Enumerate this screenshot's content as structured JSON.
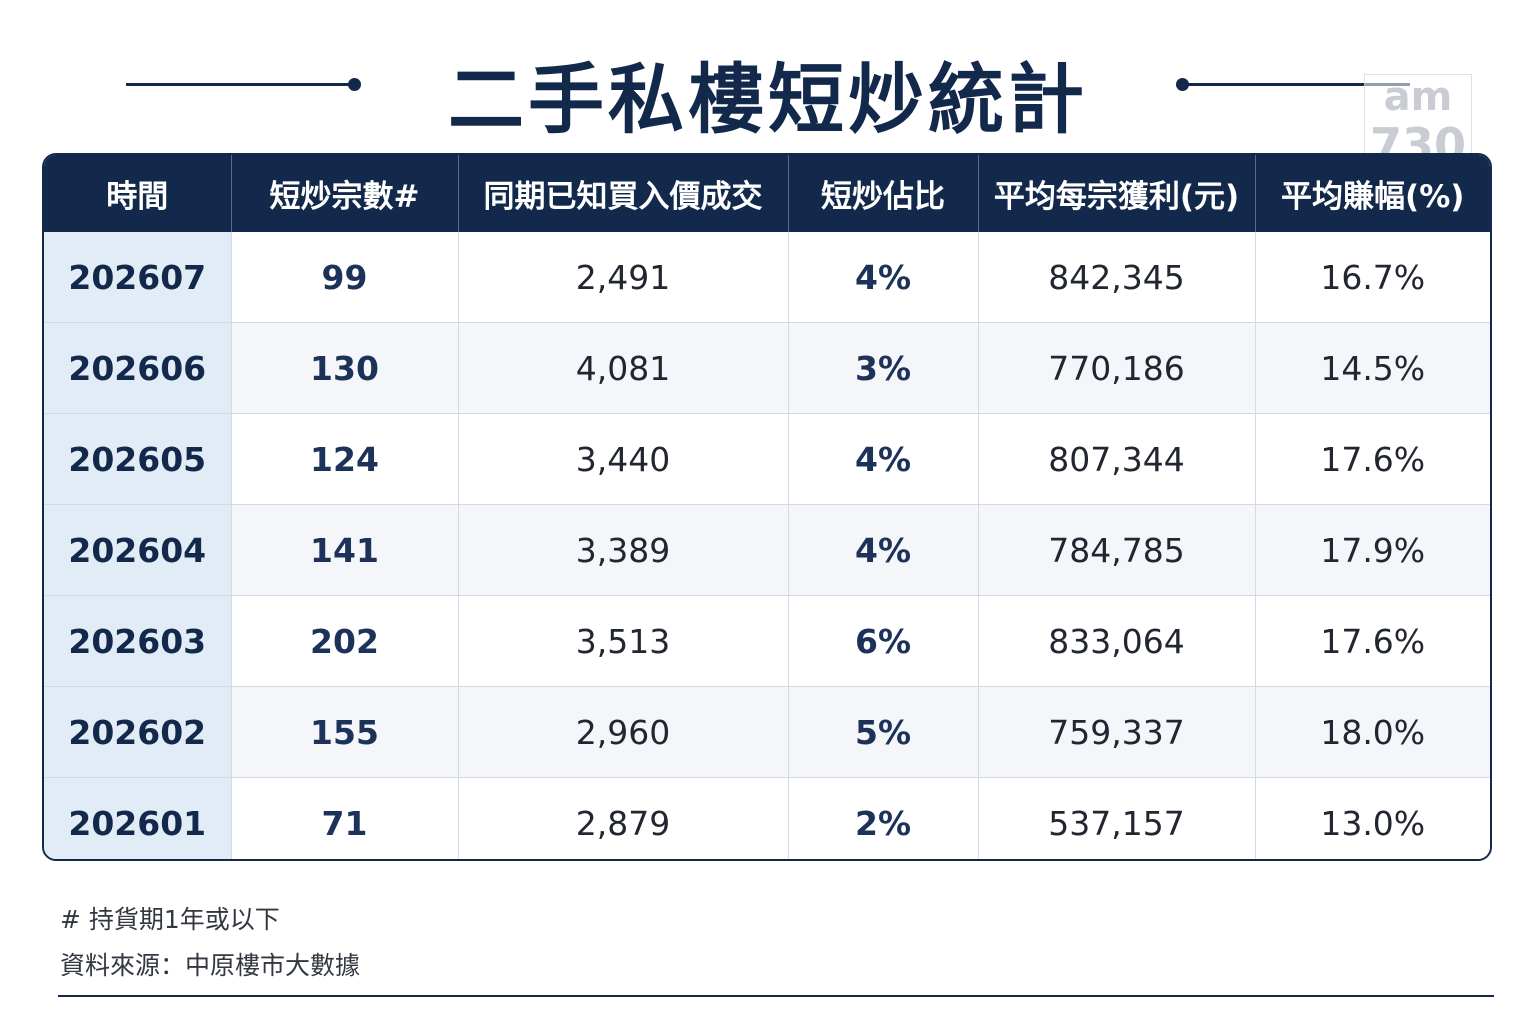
{
  "title": "二手私樓短炒統計",
  "logo": {
    "line1": "am",
    "line2": "730"
  },
  "colors": {
    "navy": "#13294b",
    "period_bg": "#e2ecf7",
    "row_alt": "#f4f6fa"
  },
  "chart_data": {
    "type": "table",
    "title": "二手私樓短炒統計",
    "columns": [
      "時間",
      "短炒宗數#",
      "同期已知買入價成交",
      "短炒佔比",
      "平均每宗獲利(元)",
      "平均賺幅(%)"
    ],
    "rows": [
      [
        "202607",
        "99",
        "2,491",
        "4%",
        "842,345",
        "16.7%"
      ],
      [
        "202606",
        "130",
        "4,081",
        "3%",
        "770,186",
        "14.5%"
      ],
      [
        "202605",
        "124",
        "3,440",
        "4%",
        "807,344",
        "17.6%"
      ],
      [
        "202604",
        "141",
        "3,389",
        "4%",
        "784,785",
        "17.9%"
      ],
      [
        "202603",
        "202",
        "3,513",
        "6%",
        "833,064",
        "17.6%"
      ],
      [
        "202602",
        "155",
        "2,960",
        "5%",
        "759,337",
        "18.0%"
      ],
      [
        "202601",
        "71",
        "2,879",
        "2%",
        "537,157",
        "13.0%"
      ]
    ]
  },
  "footnotes": {
    "note1": "# 持貨期1年或以下",
    "note2": "資料來源：中原樓市大數據"
  }
}
